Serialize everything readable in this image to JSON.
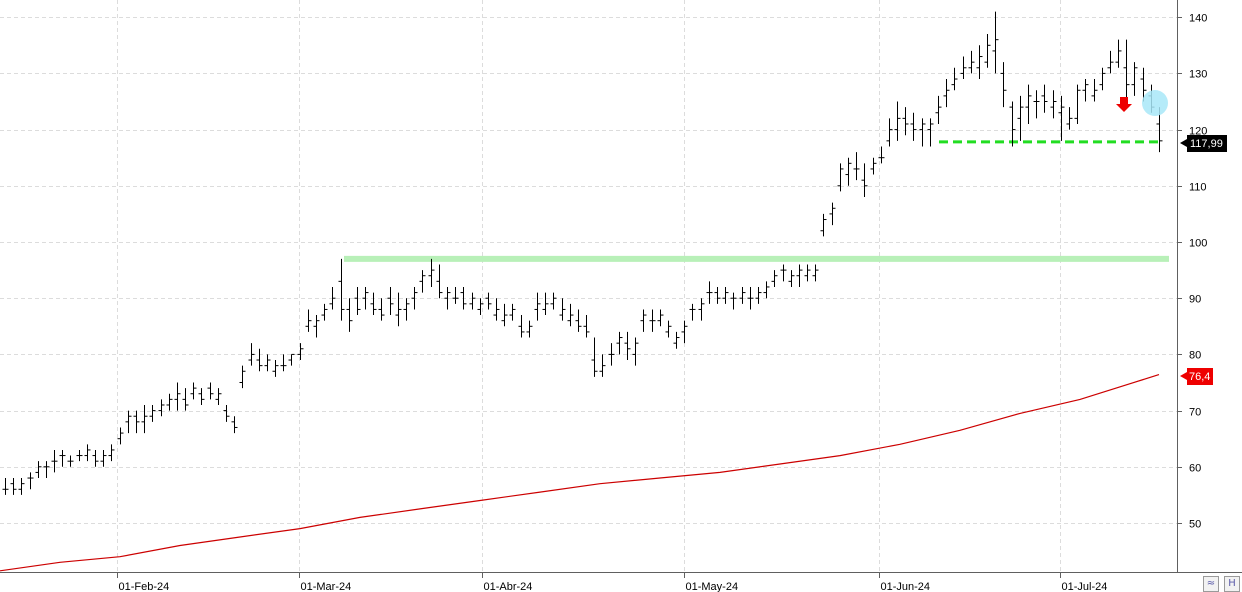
{
  "chart_data": {
    "type": "bar",
    "subtype": "ohlc",
    "title": "",
    "xlabel": "",
    "ylabel": "",
    "ylim": [
      42,
      145
    ],
    "y_ticks": [
      50,
      60,
      70,
      80,
      90,
      100,
      110,
      120,
      130,
      140
    ],
    "grid": true,
    "x_ticks": [
      "01-Feb-24",
      "01-Mar-24",
      "01-Abr-24",
      "01-May-24",
      "01-Jun-24",
      "01-Jul-24"
    ],
    "last_price_label": "117,99",
    "moving_average_label": "76,4",
    "colors": {
      "bars": "#000000",
      "moving_average": "#cc0000",
      "resistance": "#b8f0b8",
      "support": "#22dd22",
      "last_price_badge": "#000000",
      "ma_badge": "#ee0000",
      "highlight_circle": "#a8e8f8",
      "arrow": "#ee0000"
    },
    "resistance_level": 97,
    "support_level": 118,
    "ohlc": [
      [
        56,
        58,
        55,
        56
      ],
      [
        57,
        58,
        55,
        56
      ],
      [
        56,
        58,
        55,
        57
      ],
      [
        58,
        59,
        56,
        58
      ],
      [
        59,
        61,
        58,
        60
      ],
      [
        60,
        61,
        58,
        60
      ],
      [
        61,
        63,
        59,
        61
      ],
      [
        62,
        63,
        60,
        62
      ],
      [
        61,
        62,
        60,
        61
      ],
      [
        62,
        63,
        61,
        62
      ],
      [
        62,
        64,
        61,
        63
      ],
      [
        62,
        63,
        60,
        61
      ],
      [
        61,
        63,
        60,
        62
      ],
      [
        62,
        64,
        61,
        63
      ],
      [
        65,
        67,
        64,
        66
      ],
      [
        68,
        70,
        66,
        69
      ],
      [
        69,
        70,
        66,
        68
      ],
      [
        68,
        71,
        66,
        69
      ],
      [
        69,
        71,
        68,
        70
      ],
      [
        70,
        72,
        69,
        71
      ],
      [
        71,
        73,
        70,
        72
      ],
      [
        72,
        75,
        70,
        73
      ],
      [
        72,
        74,
        70,
        71
      ],
      [
        73,
        75,
        72,
        74
      ],
      [
        73,
        74,
        71,
        72
      ],
      [
        74,
        75,
        72,
        73
      ],
      [
        72,
        74,
        71,
        73
      ],
      [
        70,
        71,
        68,
        69
      ],
      [
        68,
        69,
        66,
        67
      ],
      [
        75,
        78,
        74,
        77
      ],
      [
        79,
        82,
        78,
        80
      ],
      [
        79,
        81,
        77,
        78
      ],
      [
        78,
        80,
        77,
        79
      ],
      [
        77,
        79,
        76,
        78
      ],
      [
        78,
        80,
        77,
        78
      ],
      [
        79,
        80,
        78,
        80
      ],
      [
        80,
        82,
        79,
        81
      ],
      [
        85,
        88,
        84,
        86
      ],
      [
        85,
        87,
        83,
        86
      ],
      [
        87,
        89,
        86,
        88
      ],
      [
        89,
        92,
        88,
        90
      ],
      [
        93,
        97,
        86,
        88
      ],
      [
        88,
        90,
        84,
        86
      ],
      [
        90,
        92,
        87,
        88
      ],
      [
        90,
        92,
        88,
        91
      ],
      [
        89,
        91,
        87,
        88
      ],
      [
        88,
        90,
        86,
        87
      ],
      [
        90,
        92,
        87,
        89
      ],
      [
        87,
        91,
        85,
        88
      ],
      [
        88,
        90,
        86,
        89
      ],
      [
        90,
        92,
        88,
        91
      ],
      [
        93,
        95,
        91,
        94
      ],
      [
        94,
        97,
        92,
        95
      ],
      [
        93,
        96,
        90,
        91
      ],
      [
        90,
        92,
        88,
        91
      ],
      [
        90,
        92,
        89,
        90
      ],
      [
        91,
        92,
        88,
        89
      ],
      [
        89,
        91,
        88,
        90
      ],
      [
        88,
        90,
        87,
        89
      ],
      [
        90,
        91,
        88,
        89
      ],
      [
        87,
        90,
        86,
        88
      ],
      [
        86,
        89,
        85,
        87
      ],
      [
        87,
        89,
        86,
        88
      ],
      [
        85,
        87,
        83,
        84
      ],
      [
        84,
        86,
        83,
        85
      ],
      [
        88,
        91,
        86,
        89
      ],
      [
        88,
        91,
        87,
        89
      ],
      [
        89,
        91,
        88,
        90
      ],
      [
        87,
        90,
        86,
        88
      ],
      [
        86,
        89,
        85,
        87
      ],
      [
        86,
        88,
        84,
        85
      ],
      [
        85,
        87,
        83,
        84
      ],
      [
        79,
        83,
        76,
        77
      ],
      [
        77,
        80,
        76,
        78
      ],
      [
        80,
        82,
        78,
        80
      ],
      [
        82,
        84,
        80,
        83
      ],
      [
        82,
        84,
        79,
        81
      ],
      [
        80,
        83,
        78,
        82
      ],
      [
        86,
        88,
        84,
        87
      ],
      [
        86,
        88,
        84,
        86
      ],
      [
        86,
        88,
        85,
        87
      ],
      [
        84,
        86,
        83,
        85
      ],
      [
        82,
        84,
        81,
        83
      ],
      [
        84,
        86,
        82,
        85
      ],
      [
        88,
        89,
        86,
        88
      ],
      [
        88,
        90,
        86,
        89
      ],
      [
        91,
        93,
        89,
        91
      ],
      [
        91,
        92,
        89,
        90
      ],
      [
        90,
        92,
        89,
        91
      ],
      [
        90,
        91,
        88,
        90
      ],
      [
        90,
        92,
        89,
        91
      ],
      [
        90,
        92,
        88,
        90
      ],
      [
        90,
        92,
        89,
        91
      ],
      [
        91,
        93,
        90,
        92
      ],
      [
        93,
        95,
        92,
        94
      ],
      [
        95,
        96,
        93,
        95
      ],
      [
        93,
        95,
        92,
        94
      ],
      [
        94,
        96,
        92,
        95
      ],
      [
        94,
        96,
        93,
        95
      ],
      [
        94,
        96,
        93,
        95
      ],
      [
        102,
        105,
        101,
        104
      ],
      [
        105,
        107,
        103,
        106
      ],
      [
        110,
        114,
        109,
        113
      ],
      [
        112,
        115,
        110,
        114
      ],
      [
        113,
        116,
        111,
        113
      ],
      [
        111,
        114,
        108,
        110
      ],
      [
        113,
        115,
        112,
        114
      ],
      [
        115,
        117,
        114,
        115
      ],
      [
        118,
        122,
        117,
        120
      ],
      [
        120,
        125,
        118,
        122
      ],
      [
        122,
        124,
        119,
        121
      ],
      [
        121,
        123,
        118,
        120
      ],
      [
        120,
        122,
        117,
        121
      ],
      [
        120,
        122,
        117,
        121
      ],
      [
        123,
        126,
        121,
        124
      ],
      [
        126,
        129,
        124,
        127
      ],
      [
        128,
        131,
        127,
        129
      ],
      [
        130,
        133,
        129,
        131
      ],
      [
        131,
        134,
        130,
        132
      ],
      [
        131,
        135,
        129,
        133
      ],
      [
        132,
        137,
        131,
        135
      ],
      [
        134,
        141,
        130,
        136
      ],
      [
        130,
        132,
        124,
        127
      ],
      [
        124,
        125,
        117,
        120
      ],
      [
        122,
        126,
        118,
        124
      ],
      [
        124,
        128,
        121,
        126
      ],
      [
        125,
        127,
        122,
        125
      ],
      [
        126,
        128,
        123,
        125
      ],
      [
        124,
        127,
        122,
        125
      ],
      [
        123,
        126,
        118,
        124
      ],
      [
        121,
        124,
        120,
        122
      ],
      [
        122,
        128,
        121,
        127
      ],
      [
        127,
        129,
        125,
        128
      ],
      [
        126,
        129,
        125,
        127
      ],
      [
        128,
        131,
        127,
        130
      ],
      [
        131,
        134,
        130,
        132
      ],
      [
        132,
        136,
        131,
        134
      ],
      [
        131,
        136,
        124,
        128
      ],
      [
        128,
        132,
        126,
        131
      ],
      [
        129,
        131,
        125,
        127
      ],
      [
        126,
        128,
        123,
        124
      ],
      [
        121,
        124,
        116,
        118
      ]
    ],
    "moving_average": [
      [
        0,
        41.5
      ],
      [
        60,
        43
      ],
      [
        120,
        44
      ],
      [
        180,
        46
      ],
      [
        240,
        47.5
      ],
      [
        300,
        49
      ],
      [
        360,
        51
      ],
      [
        420,
        52.5
      ],
      [
        480,
        54
      ],
      [
        540,
        55.5
      ],
      [
        600,
        57
      ],
      [
        660,
        58
      ],
      [
        720,
        59
      ],
      [
        780,
        60.5
      ],
      [
        840,
        62
      ],
      [
        900,
        64
      ],
      [
        960,
        66.5
      ],
      [
        1020,
        69.5
      ],
      [
        1080,
        72
      ],
      [
        1159,
        76.4
      ]
    ]
  }
}
